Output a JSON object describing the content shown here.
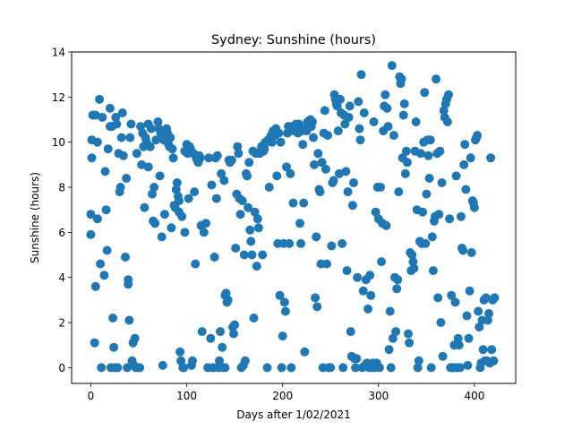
{
  "chart_data": {
    "type": "scatter",
    "title": "Sydney: Sunshine (hours)",
    "xlabel": "Days after 1/02/2021",
    "ylabel": "Sunshine (hours)",
    "xlim": [
      -20,
      443
    ],
    "ylim": [
      -0.7,
      14
    ],
    "xticks": [
      0,
      100,
      200,
      300,
      400
    ],
    "yticks": [
      0,
      2,
      4,
      6,
      8,
      10,
      12,
      14
    ],
    "grid": false,
    "marker_color": "#1f77b4",
    "points": [
      [
        0,
        6.8
      ],
      [
        0,
        5.9
      ],
      [
        1,
        10.1
      ],
      [
        1,
        9.3
      ],
      [
        2,
        11.2
      ],
      [
        4,
        1.1
      ],
      [
        5,
        3.6
      ],
      [
        5,
        11.2
      ],
      [
        7,
        6.6
      ],
      [
        7,
        10.0
      ],
      [
        9,
        11.9
      ],
      [
        10,
        4.6
      ],
      [
        11,
        0
      ],
      [
        12,
        11.1
      ],
      [
        14,
        4.1
      ],
      [
        15,
        8.7
      ],
      [
        16,
        7.0
      ],
      [
        17,
        5.2
      ],
      [
        18,
        9.7
      ],
      [
        20,
        10.7
      ],
      [
        20,
        11.5
      ],
      [
        21,
        0
      ],
      [
        22,
        10.7
      ],
      [
        23,
        2.2
      ],
      [
        24,
        0.9
      ],
      [
        25,
        0
      ],
      [
        26,
        11.1
      ],
      [
        27,
        10.8
      ],
      [
        28,
        0
      ],
      [
        29,
        9.5
      ],
      [
        30,
        7.8
      ],
      [
        31,
        8.0
      ],
      [
        32,
        10.2
      ],
      [
        33,
        11.3
      ],
      [
        34,
        9.4
      ],
      [
        36,
        4.9
      ],
      [
        37,
        8.4
      ],
      [
        38,
        0
      ],
      [
        39,
        3.7
      ],
      [
        39,
        3.9
      ],
      [
        40,
        2.1
      ],
      [
        41,
        10.2
      ],
      [
        42,
        10.8
      ],
      [
        43,
        0.3
      ],
      [
        44,
        1.1
      ],
      [
        45,
        0.1
      ],
      [
        46,
        1.3
      ],
      [
        47,
        0
      ],
      [
        48,
        9.5
      ],
      [
        50,
        0
      ],
      [
        51,
        0
      ],
      [
        52,
        10.7
      ],
      [
        53,
        9.0
      ],
      [
        54,
        10.4
      ],
      [
        55,
        9.8
      ],
      [
        56,
        7.1
      ],
      [
        57,
        10.2
      ],
      [
        58,
        10.0
      ],
      [
        60,
        10.8
      ],
      [
        60,
        8.9
      ],
      [
        62,
        9.8
      ],
      [
        63,
        10.6
      ],
      [
        64,
        7.7
      ],
      [
        65,
        6.5
      ],
      [
        66,
        8.0
      ],
      [
        67,
        6.4
      ],
      [
        68,
        10.1
      ],
      [
        70,
        10.9
      ],
      [
        71,
        10.6
      ],
      [
        72,
        8.5
      ],
      [
        73,
        10.4
      ],
      [
        74,
        5.8
      ],
      [
        75,
        0.1
      ],
      [
        76,
        10.1
      ],
      [
        77,
        6.8
      ],
      [
        78,
        10.5
      ],
      [
        79,
        10.6
      ],
      [
        80,
        10.4
      ],
      [
        81,
        9.9
      ],
      [
        82,
        9.8
      ],
      [
        83,
        10.2
      ],
      [
        84,
        6.2
      ],
      [
        85,
        9.7
      ],
      [
        86,
        9.3
      ],
      [
        87,
        7.2
      ],
      [
        88,
        7.1
      ],
      [
        89,
        7.9
      ],
      [
        90,
        8.2
      ],
      [
        91,
        7.6
      ],
      [
        92,
        6.9
      ],
      [
        92,
        7.4
      ],
      [
        93,
        0.7
      ],
      [
        94,
        0.3
      ],
      [
        95,
        6.7
      ],
      [
        96,
        0
      ],
      [
        97,
        0
      ],
      [
        98,
        9.6
      ],
      [
        98,
        6.0
      ],
      [
        99,
        9.6
      ],
      [
        100,
        9.9
      ],
      [
        101,
        9.5
      ],
      [
        102,
        7.5
      ],
      [
        103,
        9.8
      ],
      [
        104,
        9.7
      ],
      [
        105,
        0.1
      ],
      [
        106,
        0.3
      ],
      [
        107,
        9.5
      ],
      [
        108,
        7.8
      ],
      [
        109,
        4.6
      ],
      [
        110,
        9.3
      ],
      [
        111,
        9.2
      ],
      [
        112,
        9.1
      ],
      [
        113,
        9.4
      ],
      [
        114,
        9.3
      ],
      [
        115,
        6.3
      ],
      [
        116,
        1.6
      ],
      [
        118,
        6.0
      ],
      [
        120,
        6.4
      ],
      [
        122,
        0
      ],
      [
        123,
        9.3
      ],
      [
        125,
        1.3
      ],
      [
        126,
        8.1
      ],
      [
        127,
        0
      ],
      [
        128,
        0
      ],
      [
        129,
        4.9
      ],
      [
        130,
        9.3
      ],
      [
        131,
        7.5
      ],
      [
        132,
        9.4
      ],
      [
        133,
        0
      ],
      [
        134,
        0.3
      ],
      [
        135,
        1.6
      ],
      [
        136,
        8.6
      ],
      [
        137,
        0.9
      ],
      [
        138,
        0
      ],
      [
        139,
        8.3
      ],
      [
        140,
        3.2
      ],
      [
        140,
        0
      ],
      [
        141,
        3.3
      ],
      [
        142,
        2.9
      ],
      [
        143,
        3.0
      ],
      [
        144,
        9.2
      ],
      [
        145,
        9.1
      ],
      [
        147,
        9.2
      ],
      [
        148,
        1.8
      ],
      [
        149,
        1.5
      ],
      [
        150,
        1.9
      ],
      [
        151,
        5.3
      ],
      [
        152,
        7.7
      ],
      [
        153,
        9.8
      ],
      [
        154,
        9.5
      ],
      [
        155,
        7.5
      ],
      [
        156,
        6.8
      ],
      [
        157,
        0
      ],
      [
        158,
        7.4
      ],
      [
        159,
        0.1
      ],
      [
        160,
        5.0
      ],
      [
        161,
        0.3
      ],
      [
        162,
        8.6
      ],
      [
        163,
        8.5
      ],
      [
        164,
        7.1
      ],
      [
        165,
        9.1
      ],
      [
        166,
        6.1
      ],
      [
        167,
        5.6
      ],
      [
        168,
        5.0
      ],
      [
        169,
        9.6
      ],
      [
        170,
        2.2
      ],
      [
        171,
        6.9
      ],
      [
        172,
        9.5
      ],
      [
        173,
        4.5
      ],
      [
        174,
        6.6
      ],
      [
        175,
        6.2
      ],
      [
        176,
        9.5
      ],
      [
        177,
        9.6
      ],
      [
        178,
        9.8
      ],
      [
        179,
        5.0
      ],
      [
        180,
        9.6
      ],
      [
        181,
        9.7
      ],
      [
        182,
        10.0
      ],
      [
        183,
        10.0
      ],
      [
        184,
        0
      ],
      [
        185,
        10.1
      ],
      [
        186,
        8.0
      ],
      [
        187,
        10.2
      ],
      [
        188,
        10.3
      ],
      [
        189,
        10.0
      ],
      [
        190,
        10.5
      ],
      [
        191,
        10.3
      ],
      [
        192,
        10.3
      ],
      [
        193,
        10.6
      ],
      [
        194,
        8.5
      ],
      [
        195,
        5.5
      ],
      [
        196,
        10.4
      ],
      [
        197,
        3.2
      ],
      [
        198,
        10.0
      ],
      [
        199,
        0
      ],
      [
        200,
        1.4
      ],
      [
        201,
        5.5
      ],
      [
        202,
        2.9
      ],
      [
        203,
        2.5
      ],
      [
        204,
        8.9
      ],
      [
        205,
        10.4
      ],
      [
        206,
        10.7
      ],
      [
        207,
        5.5
      ],
      [
        208,
        8.6
      ],
      [
        209,
        0
      ],
      [
        210,
        10.7
      ],
      [
        211,
        7.3
      ],
      [
        212,
        10.5
      ],
      [
        213,
        10.6
      ],
      [
        214,
        10.8
      ],
      [
        215,
        10.6
      ],
      [
        216,
        10.4
      ],
      [
        217,
        10.8
      ],
      [
        218,
        6.4
      ],
      [
        219,
        5.5
      ],
      [
        220,
        10.5
      ],
      [
        221,
        9.9
      ],
      [
        222,
        7.3
      ],
      [
        223,
        0.7
      ],
      [
        224,
        10.6
      ],
      [
        225,
        10.5
      ],
      [
        226,
        10.9
      ],
      [
        227,
        10.8
      ],
      [
        228,
        10.7
      ],
      [
        229,
        11.0
      ],
      [
        230,
        10.7
      ],
      [
        231,
        10.9
      ],
      [
        232,
        10.2
      ],
      [
        233,
        9.0
      ],
      [
        234,
        3.1
      ],
      [
        235,
        5.8
      ],
      [
        236,
        2.7
      ],
      [
        237,
        9.5
      ],
      [
        238,
        7.9
      ],
      [
        239,
        7.8
      ],
      [
        240,
        4.6
      ],
      [
        241,
        9.1
      ],
      [
        242,
        0
      ],
      [
        243,
        10.4
      ],
      [
        244,
        11.4
      ],
      [
        245,
        8.8
      ],
      [
        246,
        4.6
      ],
      [
        247,
        10.3
      ],
      [
        248,
        0
      ],
      [
        249,
        0
      ],
      [
        250,
        0
      ],
      [
        251,
        5.4
      ],
      [
        252,
        8.2
      ],
      [
        253,
        8.3
      ],
      [
        254,
        12.1
      ],
      [
        255,
        11.9
      ],
      [
        256,
        11.7
      ],
      [
        257,
        11.6
      ],
      [
        258,
        10.5
      ],
      [
        259,
        8.6
      ],
      [
        260,
        11.9
      ],
      [
        261,
        11.3
      ],
      [
        262,
        5.5
      ],
      [
        263,
        0
      ],
      [
        264,
        11.2
      ],
      [
        265,
        10.8
      ],
      [
        266,
        8.7
      ],
      [
        267,
        4.3
      ],
      [
        268,
        7.8
      ],
      [
        269,
        11.1
      ],
      [
        270,
        11.6
      ],
      [
        271,
        1.6
      ],
      [
        272,
        0.5
      ],
      [
        273,
        7.2
      ],
      [
        274,
        8.2
      ],
      [
        275,
        0.4
      ],
      [
        276,
        0
      ],
      [
        277,
        0.4
      ],
      [
        278,
        4.0
      ],
      [
        279,
        11.8
      ],
      [
        280,
        10.6
      ],
      [
        281,
        10.1
      ],
      [
        282,
        13.0
      ],
      [
        283,
        0
      ],
      [
        284,
        3.4
      ],
      [
        285,
        11.3
      ],
      [
        286,
        0.1
      ],
      [
        287,
        3.9
      ],
      [
        288,
        0.2
      ],
      [
        289,
        2.6
      ],
      [
        290,
        0
      ],
      [
        291,
        4.1
      ],
      [
        292,
        3.2
      ],
      [
        293,
        0
      ],
      [
        294,
        0.2
      ],
      [
        295,
        10.9
      ],
      [
        296,
        0
      ],
      [
        297,
        6.9
      ],
      [
        298,
        0.2
      ],
      [
        299,
        8.0
      ],
      [
        300,
        6.6
      ],
      [
        301,
        0
      ],
      [
        302,
        8.0
      ],
      [
        303,
        4.7
      ],
      [
        304,
        6.4
      ],
      [
        305,
        10.5
      ],
      [
        306,
        11.6
      ],
      [
        307,
        12.1
      ],
      [
        308,
        6.3
      ],
      [
        309,
        11.5
      ],
      [
        310,
        10.7
      ],
      [
        311,
        0.8
      ],
      [
        312,
        2.5
      ],
      [
        313,
        0
      ],
      [
        314,
        13.4
      ],
      [
        315,
        1.3
      ],
      [
        316,
        10.3
      ],
      [
        317,
        4.0
      ],
      [
        318,
        1.6
      ],
      [
        319,
        3.5
      ],
      [
        320,
        3.9
      ],
      [
        321,
        7.8
      ],
      [
        322,
        12.9
      ],
      [
        323,
        12.6
      ],
      [
        324,
        12.8
      ],
      [
        325,
        9.3
      ],
      [
        326,
        11.2
      ],
      [
        327,
        11.7
      ],
      [
        328,
        8.6
      ],
      [
        329,
        9.6
      ],
      [
        330,
        9.1
      ],
      [
        331,
        1.5
      ],
      [
        332,
        1.1
      ],
      [
        333,
        5.1
      ],
      [
        334,
        4.3
      ],
      [
        335,
        5.0
      ],
      [
        336,
        4.7
      ],
      [
        337,
        4.4
      ],
      [
        338,
        9.6
      ],
      [
        339,
        10.9
      ],
      [
        340,
        7.0
      ],
      [
        341,
        0
      ],
      [
        342,
        0.3
      ],
      [
        343,
        5.6
      ],
      [
        344,
        9.5
      ],
      [
        345,
        5.5
      ],
      [
        346,
        6.9
      ],
      [
        347,
        10.0
      ],
      [
        348,
        12.2
      ],
      [
        349,
        5.5
      ],
      [
        350,
        7.7
      ],
      [
        351,
        10.1
      ],
      [
        352,
        9.4
      ],
      [
        353,
        8.4
      ],
      [
        354,
        10.1
      ],
      [
        355,
        0
      ],
      [
        356,
        5.8
      ],
      [
        357,
        4.3
      ],
      [
        358,
        6.5
      ],
      [
        359,
        6.7
      ],
      [
        360,
        12.8
      ],
      [
        361,
        9.5
      ],
      [
        362,
        3.1
      ],
      [
        363,
        6.8
      ],
      [
        364,
        9.6
      ],
      [
        365,
        2.0
      ],
      [
        366,
        8.2
      ],
      [
        367,
        0.5
      ],
      [
        368,
        11.4
      ],
      [
        369,
        11.1
      ],
      [
        370,
        11.7
      ],
      [
        371,
        11.9
      ],
      [
        372,
        10.9
      ],
      [
        373,
        12.1
      ],
      [
        374,
        6.6
      ],
      [
        375,
        0
      ],
      [
        376,
        3.2
      ],
      [
        377,
        0
      ],
      [
        378,
        0
      ],
      [
        379,
        1.0
      ],
      [
        380,
        2.9
      ],
      [
        381,
        8.5
      ],
      [
        382,
        0
      ],
      [
        383,
        1.3
      ],
      [
        384,
        1.0
      ],
      [
        385,
        0
      ],
      [
        386,
        6.7
      ],
      [
        387,
        5.3
      ],
      [
        388,
        5.2
      ],
      [
        389,
        9.0
      ],
      [
        390,
        9.9
      ],
      [
        391,
        7.9
      ],
      [
        392,
        2.3
      ],
      [
        393,
        0.1
      ],
      [
        394,
        1.3
      ],
      [
        395,
        3.4
      ],
      [
        396,
        9.3
      ],
      [
        397,
        5.1
      ],
      [
        398,
        7.4
      ],
      [
        399,
        7.3
      ],
      [
        400,
        7.1
      ],
      [
        401,
        10.1
      ],
      [
        402,
        10.2
      ],
      [
        403,
        10.3
      ],
      [
        404,
        2.5
      ],
      [
        405,
        1.8
      ],
      [
        406,
        0
      ],
      [
        407,
        0.2
      ],
      [
        408,
        2.1
      ],
      [
        409,
        0.8
      ],
      [
        410,
        3.0
      ],
      [
        411,
        0.3
      ],
      [
        412,
        3.1
      ],
      [
        413,
        0.3
      ],
      [
        414,
        2.1
      ],
      [
        415,
        2.4
      ],
      [
        416,
        0.2
      ],
      [
        417,
        9.3
      ],
      [
        418,
        0.8
      ],
      [
        419,
        3.0
      ],
      [
        420,
        0.3
      ],
      [
        421,
        3.1
      ]
    ]
  }
}
